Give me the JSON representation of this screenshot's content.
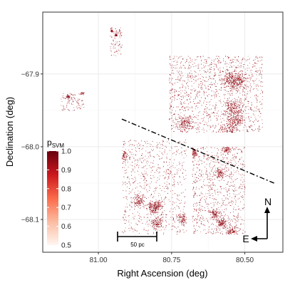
{
  "chart_data": {
    "type": "scatter",
    "xlabel": "Right Ascension (deg)",
    "ylabel": "Declination (deg)",
    "x_ticks": [
      "81.00",
      "80.75",
      "80.50"
    ],
    "x_tick_values": [
      81.0,
      80.75,
      80.5
    ],
    "y_ticks": [
      "−67.9",
      "−68.0",
      "−68.1"
    ],
    "y_tick_values": [
      -67.9,
      -68.0,
      -68.1
    ],
    "xlim": [
      81.19,
      80.37
    ],
    "ylim": [
      -68.145,
      -67.815
    ],
    "x_reversed": true,
    "grid": true,
    "legend": {
      "title": "p",
      "title_subscript": "SVM",
      "placement": "left",
      "labels": [
        "1.0",
        "0.9",
        "0.8",
        "0.7",
        "0.6",
        "0.5"
      ],
      "values": [
        1.0,
        0.9,
        0.8,
        0.7,
        0.6,
        0.5
      ],
      "color_high": "#67000d",
      "color_low": "#fff5f0"
    },
    "regions": [
      {
        "ra": [
          80.76,
          80.44
        ],
        "dec": [
          -67.98,
          -67.875
        ],
        "density": "high"
      },
      {
        "ra": [
          80.92,
          80.7
        ],
        "dec": [
          -68.12,
          -67.99
        ],
        "density": "medium"
      },
      {
        "ra": [
          80.68,
          80.5
        ],
        "dec": [
          -68.12,
          -68.0
        ],
        "density": "medium"
      },
      {
        "ra": [
          81.13,
          81.05
        ],
        "dec": [
          -67.95,
          -67.925
        ],
        "density": "low"
      },
      {
        "ra": [
          80.96,
          80.92
        ],
        "dec": [
          -67.875,
          -67.835
        ],
        "density": "low"
      }
    ],
    "divider_line": {
      "ra": [
        80.92,
        80.4
      ],
      "dec": [
        -67.962,
        -68.05
      ]
    },
    "scale_bar": {
      "label": "50 pc"
    },
    "compass": {
      "north": "N",
      "east": "E"
    }
  }
}
